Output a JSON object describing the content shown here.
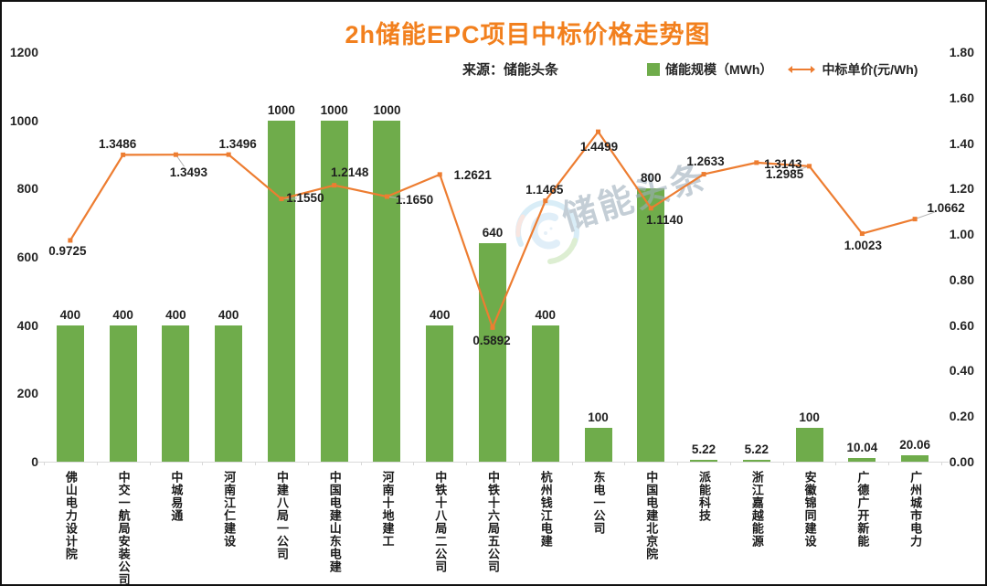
{
  "title": "2h储能EPC项目中标价格走势图",
  "source": "来源：储能头条",
  "legend": [
    {
      "label": "储能规模（MWh）",
      "marker": "green-square-icon"
    },
    {
      "label": "中标单价(元/Wh)",
      "marker": "orange-double-arrow-icon"
    }
  ],
  "watermark_text": "储能头条",
  "colors": {
    "title": "#F2801E",
    "bar": "#6FAC4B",
    "line": "#ED7D31",
    "axis_line": "#d9d9d9",
    "label": "#1f1f1f",
    "watermark": "#9EAFBB"
  },
  "chart_data": {
    "type": "combo-bar-line",
    "title": "2h储能EPC项目中标价格走势图",
    "subtitle": "来源：储能头条",
    "legend_position": "top-right",
    "grid": false,
    "categories": [
      "佛山电力设计院",
      "中交一航局安装公司",
      "中城易通",
      "河南江仁建设",
      "中建八局一公司",
      "中国电建山东电建",
      "河南十地建工",
      "中铁十八局二公司",
      "中铁十六局五公司",
      "杭州钱江电建",
      "东电一公司",
      "中国电建北京院",
      "派能科技",
      "浙江嘉越能源",
      "安徽锦同建设",
      "广德广开新能",
      "广州城市电力"
    ],
    "series": [
      {
        "name": "储能规模（MWh）",
        "type": "bar",
        "axis": "left",
        "color": "#6FAC4B",
        "values": [
          400,
          400,
          400,
          400,
          1000,
          1000,
          1000,
          400,
          640,
          400,
          100,
          800,
          5.22,
          5.22,
          100,
          10.04,
          20.06
        ]
      },
      {
        "name": "中标单价(元/Wh)",
        "type": "line",
        "axis": "right",
        "color": "#ED7D31",
        "values": [
          0.9725,
          1.3486,
          1.3493,
          1.3496,
          1.155,
          1.2148,
          1.165,
          1.2621,
          0.5892,
          1.1465,
          1.4499,
          1.114,
          1.2633,
          1.3143,
          1.2985,
          1.0023,
          1.0662
        ]
      }
    ],
    "left_axis": {
      "min": 0,
      "max": 1200,
      "ticks": [
        0,
        200,
        400,
        600,
        800,
        1000,
        1200
      ]
    },
    "right_axis": {
      "min": 0,
      "max": 1.8,
      "ticks": [
        "0.00",
        "0.20",
        "0.40",
        "0.60",
        "0.80",
        "1.00",
        "1.20",
        "1.40",
        "1.60",
        "1.80"
      ]
    },
    "label_layout": {
      "line_label_offsets": [
        [
          -3,
          12,
          0
        ],
        [
          -6,
          -11,
          0
        ],
        [
          14,
          20,
          1
        ],
        [
          10,
          -11,
          0
        ],
        [
          26,
          -1,
          1
        ],
        [
          17,
          -14,
          0
        ],
        [
          30,
          4,
          1
        ],
        [
          36,
          1,
          0
        ],
        [
          -1,
          15,
          0
        ],
        [
          -1,
          -12,
          0
        ],
        [
          1,
          17,
          0
        ],
        [
          15,
          13,
          0
        ],
        [
          2,
          -14,
          0
        ],
        [
          29,
          2,
          0
        ],
        [
          -27,
          9,
          1
        ],
        [
          1,
          13,
          0
        ],
        [
          34,
          -12,
          1
        ]
      ]
    }
  }
}
